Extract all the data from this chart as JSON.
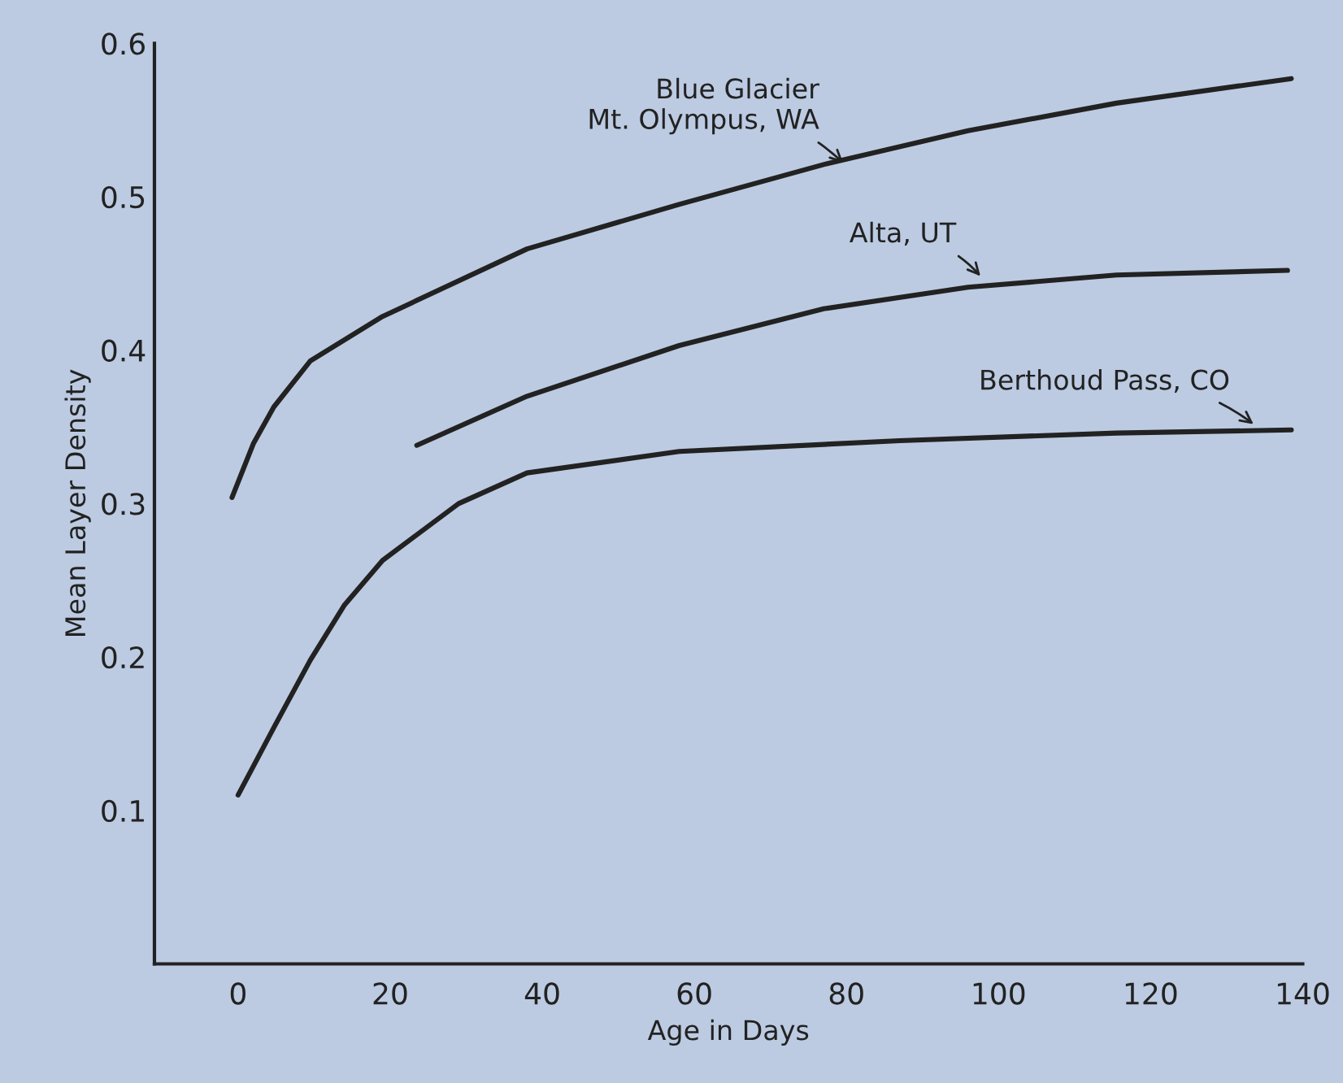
{
  "chart_data": {
    "type": "line",
    "xlabel": "Age in Days",
    "ylabel": "Mean Layer Density",
    "xlim": [
      -11,
      140
    ],
    "ylim": [
      0,
      0.6
    ],
    "xticks": [
      0,
      20,
      40,
      60,
      80,
      100,
      120,
      140
    ],
    "yticks": [
      {
        "value": 0.1,
        "label": "0.1"
      },
      {
        "value": 0.2,
        "label": "0.2"
      },
      {
        "value": 0.3,
        "label": "0.3"
      },
      {
        "value": 0.4,
        "label": "0.4"
      },
      {
        "value": 0.5,
        "label": "0.5"
      },
      {
        "value": 0.6,
        "label": "0.6"
      }
    ],
    "grid": false,
    "marker": "none",
    "line_style": "solid",
    "series": [
      {
        "color": "#222222",
        "x": [
          -0.8,
          2,
          4.7,
          9.5,
          19,
          38,
          58,
          77,
          96,
          115.5,
          138.5
        ],
        "values": [
          0.304,
          0.339,
          0.363,
          0.393,
          0.422,
          0.466,
          0.495,
          0.521,
          0.543,
          0.561,
          0.577
        ]
      },
      {
        "color": "#222222",
        "x": [
          23.5,
          38,
          58,
          77,
          96,
          115.5,
          138
        ],
        "values": [
          0.338,
          0.37,
          0.403,
          0.427,
          0.441,
          0.449,
          0.452
        ]
      },
      {
        "color": "#222222",
        "x": [
          0,
          4.7,
          9.5,
          14,
          19,
          29,
          38,
          58,
          87,
          115.5,
          138.5
        ],
        "values": [
          0.11,
          0.154,
          0.198,
          0.234,
          0.263,
          0.3,
          0.32,
          0.334,
          0.341,
          0.346,
          0.348
        ]
      }
    ],
    "annotations": [
      {
        "text": "Blue Glacier\nMt. Olympus, WA",
        "x": 80,
        "y": 0.52
      },
      {
        "text": "Alta, UT",
        "x": 98,
        "y": 0.446
      },
      {
        "text": "Berthoud Pass, CO",
        "x": 134,
        "y": 0.35
      }
    ]
  }
}
